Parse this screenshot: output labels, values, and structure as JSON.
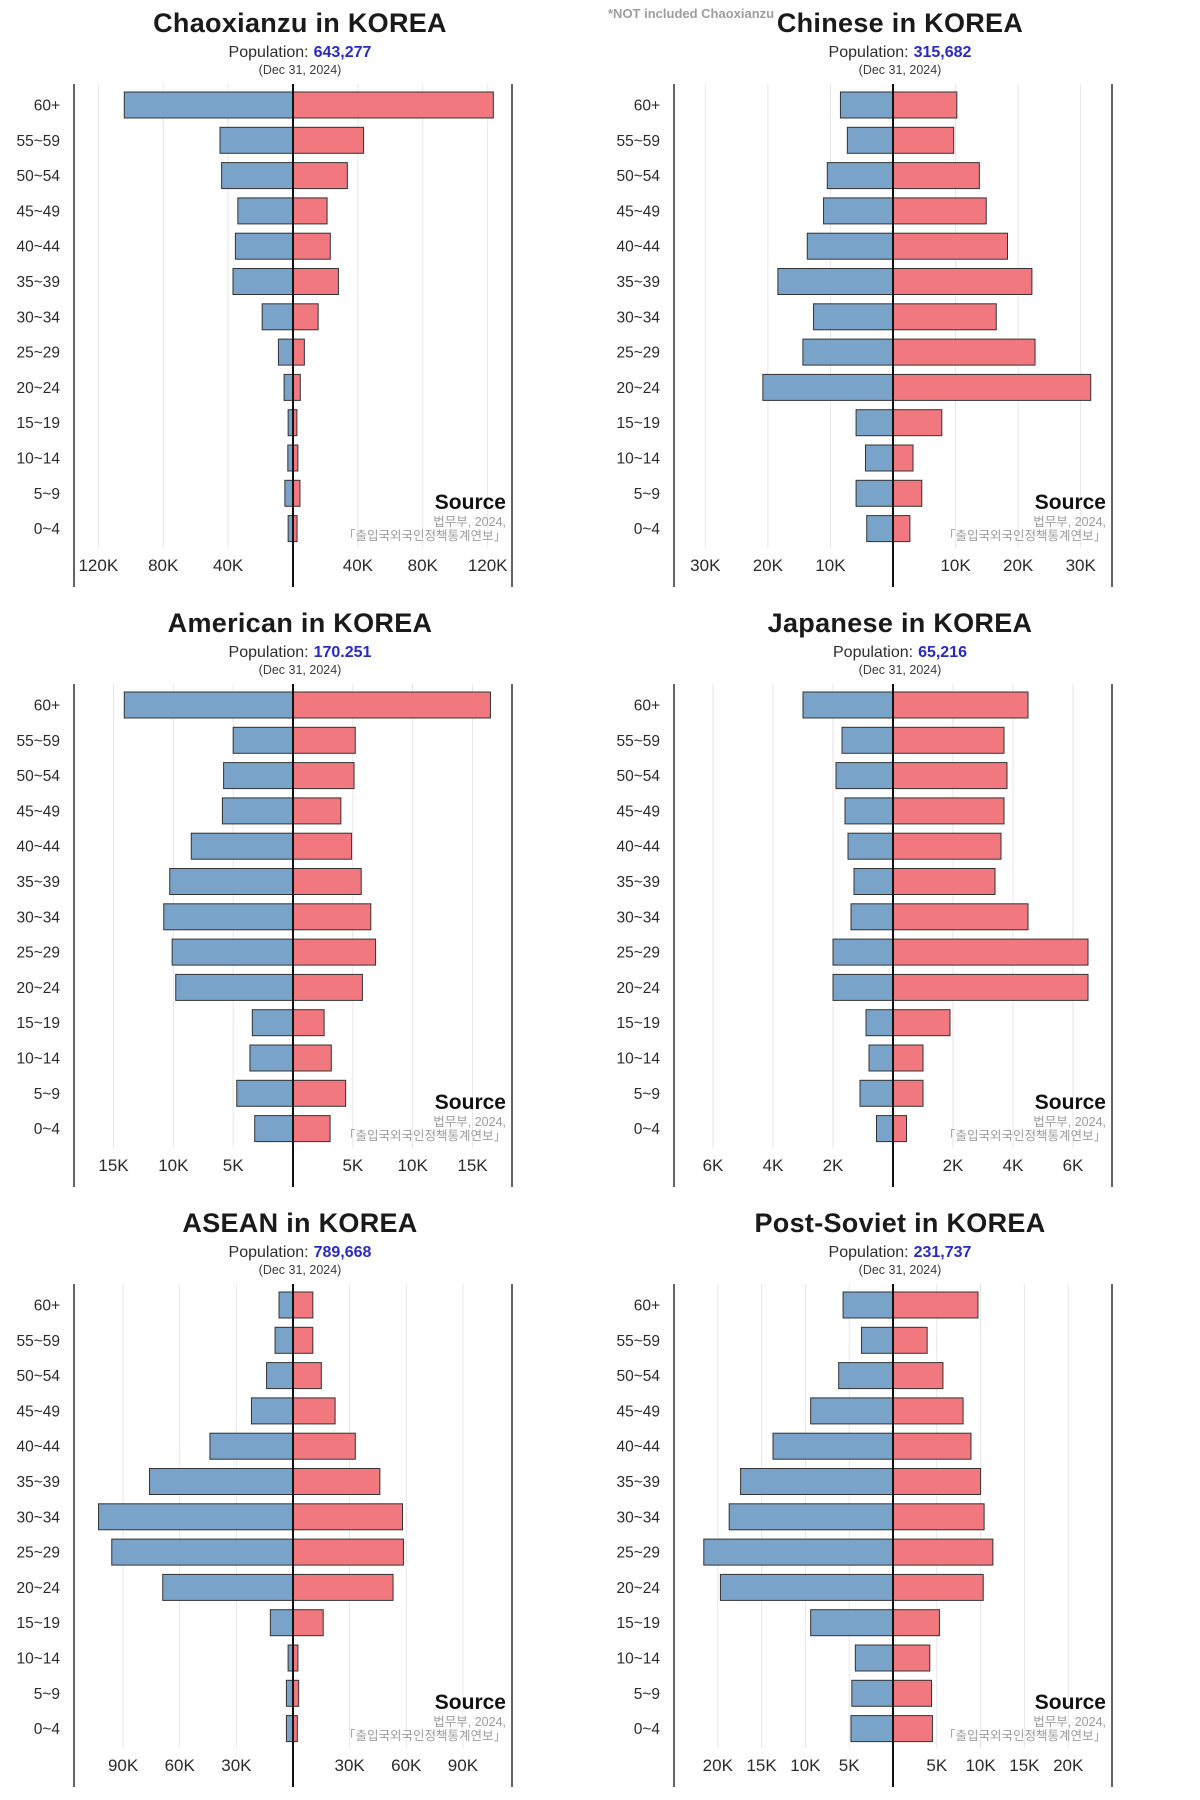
{
  "labels": {
    "population_label": "Population:"
  },
  "annotation": "*NOT included Chaoxianzu",
  "source": {
    "label": "Source",
    "line1": "법무부, 2024,",
    "line2": "「출입국외국인정책통계연보」"
  },
  "colors": {
    "male": "#7AA3C9",
    "female": "#F1787E",
    "bar_border": "#333333",
    "grid": "#e7e7e7",
    "axis": "#111111",
    "population_value": "#2a2ac8",
    "annotation_gray": "#9e9e9e"
  },
  "age_groups": [
    "60+",
    "55~59",
    "50~54",
    "45~49",
    "40~44",
    "35~39",
    "30~34",
    "25~29",
    "20~24",
    "15~19",
    "10~14",
    "5~9",
    "0~4"
  ],
  "chart_data": [
    {
      "type": "bar",
      "subtype": "population-pyramid",
      "title": "Chaoxianzu in KOREA",
      "population": "643,277",
      "date": "(Dec 31, 2024)",
      "legend": [
        "male (left, blue)",
        "female (right, red)"
      ],
      "x_ticks": [
        40000,
        80000,
        120000
      ],
      "x_max": 135000,
      "male": [
        104000,
        45000,
        44000,
        34000,
        35500,
        37000,
        19000,
        9000,
        5500,
        3000,
        3200,
        5000,
        3000
      ],
      "female": [
        123500,
        43500,
        33500,
        21000,
        23000,
        28000,
        15500,
        7000,
        4500,
        2400,
        3000,
        4300,
        2500
      ]
    },
    {
      "type": "bar",
      "subtype": "population-pyramid",
      "title": "Chinese in KOREA",
      "population": "315,682",
      "date": "(Dec 31, 2024)",
      "legend": [
        "male (left, blue)",
        "female (right, red)"
      ],
      "x_ticks": [
        10000,
        20000,
        30000
      ],
      "x_max": 35000,
      "male": [
        8400,
        7300,
        10500,
        11100,
        13700,
        18400,
        12700,
        14400,
        20800,
        5900,
        4400,
        5900,
        4200
      ],
      "female": [
        10200,
        9700,
        13800,
        14900,
        18300,
        22200,
        16500,
        22700,
        31600,
        7800,
        3200,
        4600,
        2700
      ]
    },
    {
      "type": "bar",
      "subtype": "population-pyramid",
      "title": "American in KOREA",
      "population": "170.251",
      "date": "(Dec 31, 2024)",
      "legend": [
        "male (left, blue)",
        "female (right, red)"
      ],
      "x_ticks": [
        5000,
        10000,
        15000
      ],
      "x_max": 18300,
      "male": [
        14100,
        5000,
        5800,
        5900,
        8500,
        10300,
        10800,
        10100,
        9800,
        3400,
        3600,
        4700,
        3200
      ],
      "female": [
        16500,
        5200,
        5100,
        4000,
        4900,
        5700,
        6500,
        6900,
        5800,
        2600,
        3200,
        4400,
        3100
      ]
    },
    {
      "type": "bar",
      "subtype": "population-pyramid",
      "title": "Japanese in KOREA",
      "population": "65,216",
      "date": "(Dec 31, 2024)",
      "legend": [
        "male (left, blue)",
        "female (right, red)"
      ],
      "x_ticks": [
        2000,
        4000,
        6000
      ],
      "x_max": 7300,
      "male": [
        3000,
        1700,
        1900,
        1600,
        1500,
        1300,
        1400,
        2000,
        2000,
        900,
        800,
        1100,
        550
      ],
      "female": [
        4500,
        3700,
        3800,
        3700,
        3600,
        3400,
        4500,
        6500,
        6500,
        1900,
        1000,
        1000,
        450
      ]
    },
    {
      "type": "bar",
      "subtype": "population-pyramid",
      "title": "ASEAN in KOREA",
      "population": "789,668",
      "date": "(Dec 31, 2024)",
      "legend": [
        "male (left, blue)",
        "female (right, red)"
      ],
      "x_ticks": [
        30000,
        60000,
        90000
      ],
      "x_max": 116000,
      "male": [
        7400,
        9500,
        14000,
        22000,
        44000,
        76000,
        103000,
        96000,
        69000,
        12000,
        2600,
        3500,
        3500
      ],
      "female": [
        10500,
        10500,
        15000,
        22300,
        33000,
        46000,
        58000,
        58500,
        53000,
        16000,
        2600,
        3000,
        2300
      ]
    },
    {
      "type": "bar",
      "subtype": "population-pyramid",
      "title": "Post-Soviet in KOREA",
      "population": "231,737",
      "date": "(Dec 31, 2024)",
      "legend": [
        "male (left, blue)",
        "female (right, red)"
      ],
      "x_ticks": [
        5000,
        10000,
        15000,
        20000
      ],
      "x_max": 25000,
      "male": [
        5700,
        3600,
        6200,
        9400,
        13700,
        17400,
        18700,
        21600,
        19700,
        9400,
        4300,
        4700,
        4800
      ],
      "female": [
        9700,
        3900,
        5700,
        8000,
        8900,
        10000,
        10400,
        11400,
        10300,
        5300,
        4200,
        4400,
        4500
      ]
    }
  ]
}
